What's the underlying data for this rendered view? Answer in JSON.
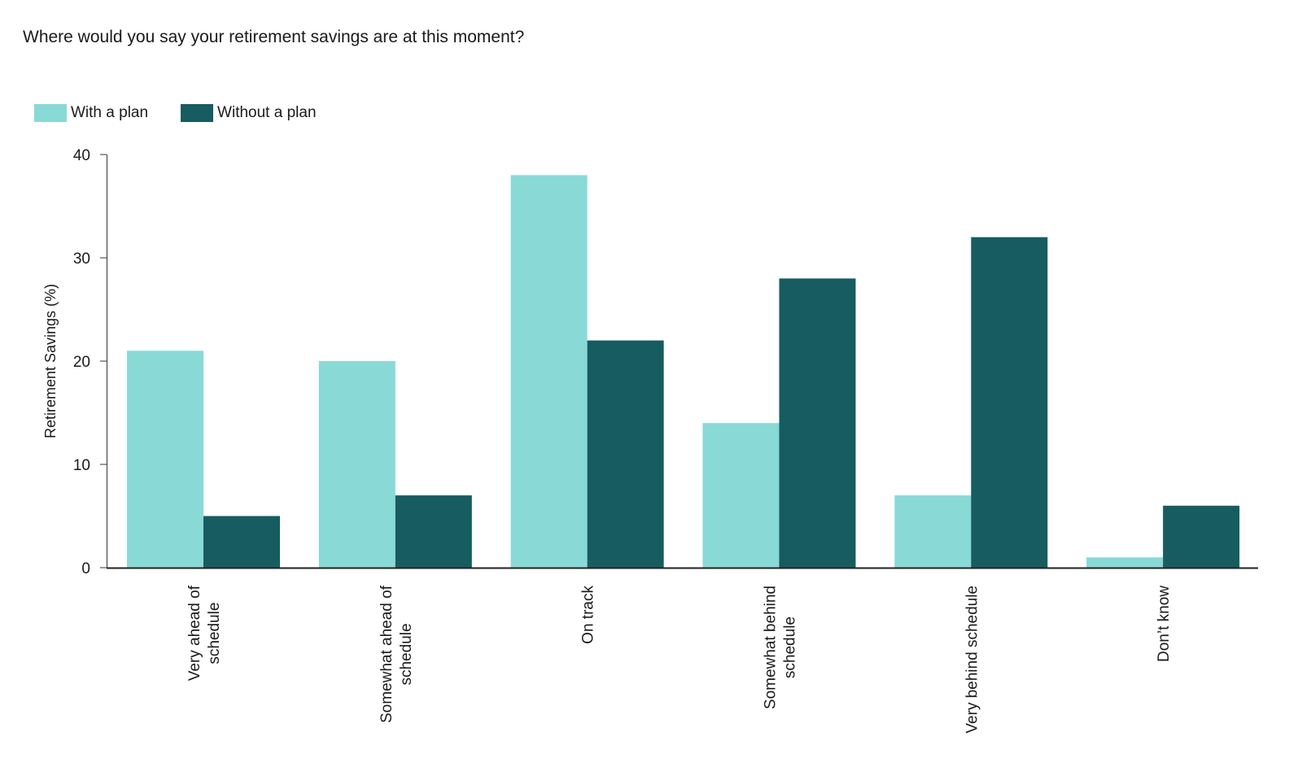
{
  "chart_data": {
    "type": "bar",
    "title": "Where would you say your retirement savings are at this moment?",
    "ylabel": "Retirement Savings (%)",
    "xlabel": "",
    "ylim": [
      0,
      40
    ],
    "yticks": [
      0,
      10,
      20,
      30,
      40
    ],
    "categories": [
      [
        "Very ahead of",
        "schedule"
      ],
      [
        "Somewhat ahead of",
        "schedule"
      ],
      [
        "On track"
      ],
      [
        "Somewhat behind",
        "schedule"
      ],
      [
        "Very behind schedule"
      ],
      [
        "Don’t know"
      ]
    ],
    "series": [
      {
        "name": "With a plan",
        "color": "#89d9d6",
        "values": [
          21,
          20,
          38,
          14,
          7,
          1
        ]
      },
      {
        "name": "Without a plan",
        "color": "#175c60",
        "values": [
          5,
          7,
          22,
          28,
          32,
          6
        ]
      }
    ],
    "grid": false,
    "legend_position": "top-left"
  }
}
